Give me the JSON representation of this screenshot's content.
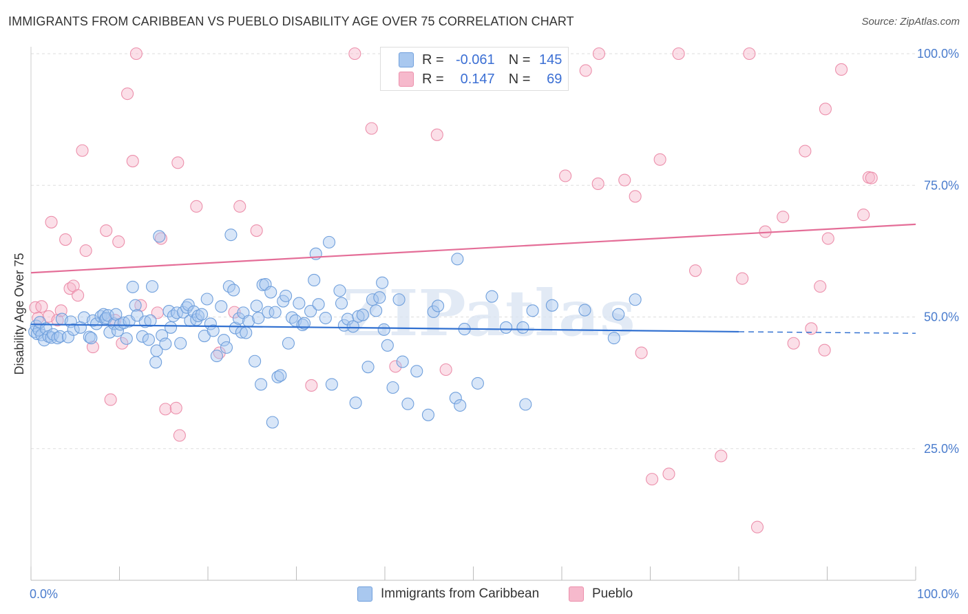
{
  "title": "IMMIGRANTS FROM CARIBBEAN VS PUEBLO DISABILITY AGE OVER 75 CORRELATION CHART",
  "source": "Source: ZipAtlas.com",
  "watermark": "ZIPatlas",
  "colors": {
    "blue_fill": "#a9c8ef",
    "blue_stroke": "#6f9fdc",
    "blue_line": "#2f6fd0",
    "pink_fill": "#f6b9cc",
    "pink_stroke": "#ec8fab",
    "pink_line": "#e46d97",
    "tick_text": "#4a7ccd",
    "grid": "#dddddd"
  },
  "legend": {
    "rows": [
      {
        "r_label": "R =",
        "r_value": "-0.061",
        "n_label": "N =",
        "n_value": "145"
      },
      {
        "r_label": "R =",
        "r_value": "0.147",
        "n_label": "N =",
        "n_value": "69"
      }
    ]
  },
  "bottom_legend": [
    "Immigrants from Caribbean",
    "Pueblo"
  ],
  "chart_data": {
    "type": "scatter",
    "title": "IMMIGRANTS FROM CARIBBEAN VS PUEBLO DISABILITY AGE OVER 75 CORRELATION CHART",
    "xlabel": "",
    "ylabel": "Disability Age Over 75",
    "xlim": [
      0,
      100
    ],
    "ylim": [
      0,
      100
    ],
    "x_tick_labels": [
      "0.0%",
      "100.0%"
    ],
    "y_tick_labels": [
      "25.0%",
      "50.0%",
      "75.0%",
      "100.0%"
    ],
    "y_ticks": [
      25,
      50,
      75,
      100
    ],
    "grid": true,
    "legend_position": "top-center",
    "series": [
      {
        "name": "Immigrants from Caribbean",
        "color": "#a9c8ef",
        "r": -0.061,
        "n": 145,
        "trend": {
          "x0": 0,
          "y0": 48.6,
          "x1": 80,
          "y1": 47.2,
          "dashed_to_x": 100,
          "dashed_y": 46.9
        },
        "points": [
          [
            0.4,
            47.2
          ],
          [
            0.6,
            48.3
          ],
          [
            0.7,
            46.8
          ],
          [
            0.9,
            47.5
          ],
          [
            1.0,
            49.0
          ],
          [
            1.2,
            46.6
          ],
          [
            1.5,
            45.6
          ],
          [
            1.7,
            47.8
          ],
          [
            2.0,
            46.3
          ],
          [
            2.3,
            46.1
          ],
          [
            2.5,
            46.7
          ],
          [
            3.0,
            46.0
          ],
          [
            3.3,
            46.3
          ],
          [
            3.5,
            49.6
          ],
          [
            4.2,
            46.2
          ],
          [
            4.5,
            49.1
          ],
          [
            4.8,
            47.6
          ],
          [
            5.6,
            48.0
          ],
          [
            6.0,
            49.9
          ],
          [
            6.6,
            46.2
          ],
          [
            6.8,
            46.0
          ],
          [
            7.0,
            49.3
          ],
          [
            7.4,
            48.7
          ],
          [
            7.9,
            50.1
          ],
          [
            8.2,
            50.5
          ],
          [
            8.4,
            49.6
          ],
          [
            8.5,
            49.8
          ],
          [
            8.7,
            50.3
          ],
          [
            8.9,
            47.1
          ],
          [
            9.4,
            48.7
          ],
          [
            9.6,
            50.5
          ],
          [
            9.8,
            47.4
          ],
          [
            10.1,
            48.6
          ],
          [
            10.5,
            48.9
          ],
          [
            10.8,
            45.9
          ],
          [
            11.1,
            49.2
          ],
          [
            11.5,
            55.7
          ],
          [
            11.8,
            52.2
          ],
          [
            12.0,
            50.3
          ],
          [
            12.6,
            46.3
          ],
          [
            12.9,
            49.1
          ],
          [
            13.3,
            45.7
          ],
          [
            13.5,
            49.3
          ],
          [
            13.7,
            55.8
          ],
          [
            14.1,
            41.4
          ],
          [
            14.2,
            43.6
          ],
          [
            14.5,
            65.3
          ],
          [
            14.8,
            46.5
          ],
          [
            15.2,
            44.9
          ],
          [
            15.6,
            51.1
          ],
          [
            15.8,
            48.0
          ],
          [
            16.1,
            50.2
          ],
          [
            16.5,
            50.8
          ],
          [
            16.9,
            45.0
          ],
          [
            17.2,
            50.9
          ],
          [
            17.6,
            51.8
          ],
          [
            17.8,
            52.3
          ],
          [
            18.0,
            49.3
          ],
          [
            18.4,
            51.0
          ],
          [
            18.7,
            49.5
          ],
          [
            18.9,
            50.2
          ],
          [
            19.3,
            50.5
          ],
          [
            19.6,
            46.4
          ],
          [
            19.9,
            53.4
          ],
          [
            20.3,
            48.7
          ],
          [
            20.6,
            47.4
          ],
          [
            21.0,
            42.6
          ],
          [
            21.5,
            52.0
          ],
          [
            21.8,
            45.6
          ],
          [
            22.1,
            44.2
          ],
          [
            22.4,
            55.8
          ],
          [
            22.6,
            65.6
          ],
          [
            22.9,
            55.1
          ],
          [
            23.1,
            47.9
          ],
          [
            23.5,
            49.7
          ],
          [
            23.8,
            47.1
          ],
          [
            24.0,
            50.8
          ],
          [
            24.3,
            47.0
          ],
          [
            24.6,
            49.2
          ],
          [
            25.3,
            41.6
          ],
          [
            25.5,
            52.1
          ],
          [
            25.7,
            49.8
          ],
          [
            26.0,
            37.2
          ],
          [
            26.2,
            56.1
          ],
          [
            26.5,
            56.2
          ],
          [
            26.8,
            50.9
          ],
          [
            27.1,
            54.7
          ],
          [
            27.3,
            30.0
          ],
          [
            27.6,
            50.9
          ],
          [
            27.9,
            38.6
          ],
          [
            28.2,
            38.9
          ],
          [
            28.5,
            53.0
          ],
          [
            28.8,
            54.0
          ],
          [
            29.1,
            45.0
          ],
          [
            29.5,
            49.9
          ],
          [
            29.9,
            49.3
          ],
          [
            30.3,
            52.6
          ],
          [
            30.7,
            48.5
          ],
          [
            30.9,
            48.8
          ],
          [
            31.6,
            51.1
          ],
          [
            32.0,
            57.0
          ],
          [
            32.2,
            62.0
          ],
          [
            32.5,
            52.4
          ],
          [
            33.3,
            49.8
          ],
          [
            33.7,
            64.2
          ],
          [
            34.0,
            37.2
          ],
          [
            34.9,
            55.0
          ],
          [
            35.1,
            52.6
          ],
          [
            35.4,
            48.4
          ],
          [
            35.8,
            49.6
          ],
          [
            36.4,
            48.2
          ],
          [
            36.7,
            33.7
          ],
          [
            37.0,
            50.1
          ],
          [
            37.5,
            50.4
          ],
          [
            38.1,
            40.5
          ],
          [
            38.6,
            53.3
          ],
          [
            39.0,
            51.2
          ],
          [
            39.4,
            53.7
          ],
          [
            39.7,
            56.5
          ],
          [
            39.9,
            47.6
          ],
          [
            40.3,
            44.6
          ],
          [
            40.9,
            36.6
          ],
          [
            41.6,
            53.3
          ],
          [
            42.0,
            41.5
          ],
          [
            42.6,
            33.5
          ],
          [
            43.6,
            39.7
          ],
          [
            44.9,
            31.4
          ],
          [
            45.5,
            51.0
          ],
          [
            46.0,
            52.1
          ],
          [
            48.0,
            34.6
          ],
          [
            48.2,
            61.0
          ],
          [
            48.5,
            33.2
          ],
          [
            49.0,
            47.7
          ],
          [
            50.5,
            37.4
          ],
          [
            52.1,
            53.9
          ],
          [
            53.7,
            48.0
          ],
          [
            55.6,
            48.0
          ],
          [
            55.9,
            33.4
          ],
          [
            56.7,
            51.2
          ],
          [
            58.9,
            52.2
          ],
          [
            62.6,
            51.3
          ],
          [
            65.9,
            46.0
          ],
          [
            66.4,
            50.5
          ],
          [
            68.3,
            53.3
          ]
        ]
      },
      {
        "name": "Pueblo",
        "color": "#f6b9cc",
        "r": 0.147,
        "n": 69,
        "trend": {
          "x0": 0,
          "y0": 58.4,
          "x1": 100,
          "y1": 67.6
        },
        "points": [
          [
            0.5,
            51.8
          ],
          [
            0.8,
            49.8
          ],
          [
            1.2,
            52.0
          ],
          [
            2.0,
            50.1
          ],
          [
            2.3,
            68.0
          ],
          [
            3.0,
            49.4
          ],
          [
            3.4,
            51.2
          ],
          [
            3.9,
            64.7
          ],
          [
            4.4,
            55.4
          ],
          [
            4.8,
            55.9
          ],
          [
            5.3,
            54.1
          ],
          [
            5.8,
            81.6
          ],
          [
            6.2,
            62.6
          ],
          [
            7.0,
            44.3
          ],
          [
            8.5,
            66.4
          ],
          [
            9.0,
            34.3
          ],
          [
            9.5,
            49.4
          ],
          [
            9.9,
            64.3
          ],
          [
            10.3,
            45.0
          ],
          [
            10.9,
            92.4
          ],
          [
            11.5,
            79.6
          ],
          [
            11.9,
            100.0
          ],
          [
            12.4,
            52.2
          ],
          [
            14.3,
            50.8
          ],
          [
            14.7,
            64.9
          ],
          [
            15.2,
            32.5
          ],
          [
            16.6,
            79.3
          ],
          [
            16.8,
            27.5
          ],
          [
            16.4,
            32.7
          ],
          [
            18.7,
            71.0
          ],
          [
            21.3,
            43.2
          ],
          [
            23.0,
            50.9
          ],
          [
            23.6,
            71.0
          ],
          [
            25.5,
            66.4
          ],
          [
            31.7,
            37.0
          ],
          [
            36.6,
            100.0
          ],
          [
            38.5,
            85.8
          ],
          [
            41.2,
            40.6
          ],
          [
            45.9,
            84.6
          ],
          [
            60.4,
            76.8
          ],
          [
            64.2,
            100.0
          ],
          [
            62.7,
            96.8
          ],
          [
            64.1,
            75.3
          ],
          [
            67.1,
            76.0
          ],
          [
            68.3,
            72.9
          ],
          [
            69.0,
            43.2
          ],
          [
            70.2,
            19.2
          ],
          [
            71.1,
            79.9
          ],
          [
            72.1,
            20.2
          ],
          [
            73.2,
            100.0
          ],
          [
            75.1,
            58.8
          ],
          [
            78.0,
            23.6
          ],
          [
            80.4,
            57.3
          ],
          [
            82.1,
            10.1
          ],
          [
            83.0,
            66.2
          ],
          [
            85.0,
            69.0
          ],
          [
            86.2,
            45.0
          ],
          [
            87.5,
            81.5
          ],
          [
            88.2,
            47.8
          ],
          [
            89.2,
            55.8
          ],
          [
            89.8,
            89.5
          ],
          [
            90.1,
            64.9
          ],
          [
            91.6,
            97.0
          ],
          [
            94.1,
            69.4
          ],
          [
            94.7,
            76.5
          ],
          [
            95.0,
            76.4
          ],
          [
            89.7,
            43.7
          ],
          [
            81.2,
            100.0
          ],
          [
            46.9,
            40.0
          ]
        ]
      }
    ]
  }
}
